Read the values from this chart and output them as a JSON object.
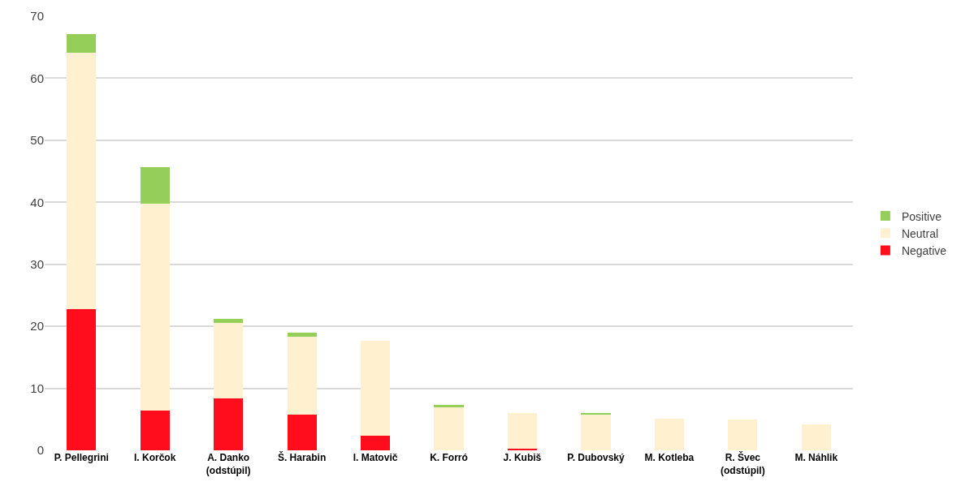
{
  "chart_data": {
    "type": "bar",
    "stacked": true,
    "categories": [
      "P. Pellegrini",
      "I. Korčok",
      "A. Danko\n(odstúpil)",
      "Š. Harabin",
      "I. Matovič",
      "K. Forró",
      "J. Kubiš",
      "P. Dubovský",
      "M. Kotleba",
      "R. Švec\n(odstúpil)",
      "M. Náhlik"
    ],
    "series": [
      {
        "name": "Negative",
        "color": "#ff0d1d",
        "values": [
          22.8,
          6.4,
          8.4,
          5.8,
          2.3,
          0,
          0.3,
          0,
          0,
          0,
          0
        ]
      },
      {
        "name": "Neutral",
        "color": "#fff0cf",
        "values": [
          41.3,
          33.4,
          12.1,
          12.5,
          15.4,
          7.0,
          5.7,
          5.8,
          5.1,
          5.0,
          4.2
        ]
      },
      {
        "name": "Positive",
        "color": "#95cf5a",
        "values": [
          3.0,
          5.8,
          0.7,
          0.7,
          0,
          0.3,
          0,
          0.2,
          0,
          0,
          0
        ]
      }
    ],
    "ylim": [
      0,
      70
    ],
    "yticks": [
      0,
      10,
      20,
      30,
      40,
      50,
      60,
      70
    ],
    "grid": "y",
    "legend": "right"
  }
}
